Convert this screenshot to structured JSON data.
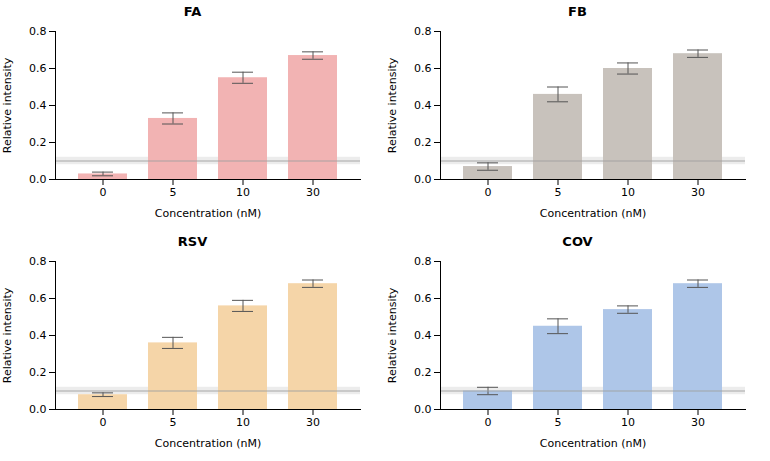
{
  "chart_data": [
    {
      "type": "bar",
      "title": "FA",
      "categories": [
        "0",
        "5",
        "10",
        "30"
      ],
      "values": [
        0.03,
        0.33,
        0.55,
        0.67
      ],
      "errors": [
        0.01,
        0.03,
        0.03,
        0.02
      ],
      "color": "#f2b3b3",
      "xlabel": "Concentration (nM)",
      "ylabel": "Relative intensity",
      "ylim": [
        0,
        0.8
      ],
      "yticks": [
        {
          "value": 0,
          "label": "0.0"
        },
        0.2,
        0.4,
        0.6,
        0.8
      ],
      "threshold": 0.1,
      "threshold_band": [
        0.08,
        0.12
      ]
    },
    {
      "type": "bar",
      "title": "FB",
      "categories": [
        "0",
        "5",
        "10",
        "30"
      ],
      "values": [
        0.07,
        0.46,
        0.6,
        0.68
      ],
      "errors": [
        0.02,
        0.04,
        0.03,
        0.02
      ],
      "color": "#c8c2bc",
      "xlabel": "Concentration (nM)",
      "ylabel": "Relative intensity",
      "ylim": [
        0,
        0.8
      ],
      "yticks": [
        {
          "value": 0,
          "label": "0.0"
        },
        0.2,
        0.4,
        0.6,
        0.8
      ],
      "threshold": 0.1,
      "threshold_band": [
        0.08,
        0.12
      ]
    },
    {
      "type": "bar",
      "title": "RSV",
      "categories": [
        "0",
        "5",
        "10",
        "30"
      ],
      "values": [
        0.08,
        0.36,
        0.56,
        0.68
      ],
      "errors": [
        0.01,
        0.03,
        0.03,
        0.02
      ],
      "color": "#f5d5a8",
      "xlabel": "Concentration (nM)",
      "ylabel": "Relative intensity",
      "ylim": [
        0,
        0.8
      ],
      "yticks": [
        {
          "value": 0,
          "label": "0.0"
        },
        0.2,
        0.4,
        0.6,
        0.8
      ],
      "threshold": 0.1,
      "threshold_band": [
        0.08,
        0.12
      ]
    },
    {
      "type": "bar",
      "title": "COV",
      "categories": [
        "0",
        "5",
        "10",
        "30"
      ],
      "values": [
        0.1,
        0.45,
        0.54,
        0.68
      ],
      "errors": [
        0.02,
        0.04,
        0.02,
        0.02
      ],
      "color": "#aec6e8",
      "xlabel": "Concentration (nM)",
      "ylabel": "Relative intensity",
      "ylim": [
        0,
        0.8
      ],
      "yticks": [
        {
          "value": 0,
          "label": "0.0"
        },
        0.2,
        0.4,
        0.6,
        0.8
      ],
      "threshold": 0.1,
      "threshold_band": [
        0.08,
        0.12
      ]
    }
  ]
}
